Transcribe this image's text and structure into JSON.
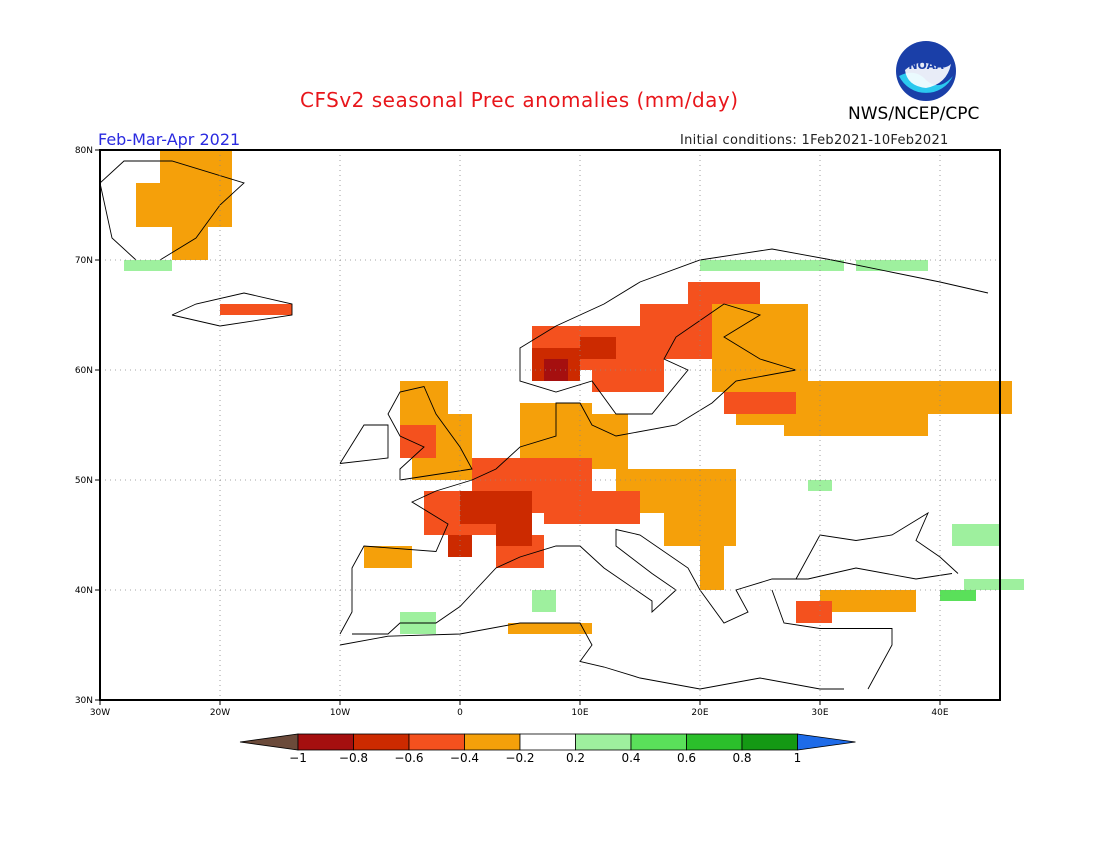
{
  "title": "CFSv2 seasonal Prec anomalies (mm/day)",
  "period": "Feb-Mar-Apr 2021",
  "initial_conditions": "Initial conditions: 1Feb2021-10Feb2021",
  "organization": "NWS/NCEP/CPC",
  "logo_text": "NOAA",
  "lat_labels": [
    "80N",
    "70N",
    "60N",
    "50N",
    "40N",
    "30N"
  ],
  "lon_labels": [
    "30W",
    "20W",
    "10W",
    "0",
    "10E",
    "20E",
    "30E",
    "40E"
  ],
  "colorbar": {
    "labels": [
      "−1",
      "−0.8",
      "−0.6",
      "−0.4",
      "−0.2",
      "0.2",
      "0.4",
      "0.6",
      "0.8",
      "1"
    ],
    "colors": [
      "#6b4a3a",
      "#a50f0f",
      "#cc2a00",
      "#f4511e",
      "#f5a00a",
      "#ffffff",
      "#9ef09e",
      "#5ae05a",
      "#2bbf2b",
      "#149914",
      "#1e6be8"
    ]
  },
  "map_data": {
    "lon_range": [
      -30,
      45
    ],
    "lat_range": [
      30,
      80
    ],
    "cell_deg": 1,
    "regions": [
      {
        "level": -0.3,
        "cells": [
          [
            -25,
            77,
            6,
            3
          ],
          [
            -27,
            73,
            8,
            4
          ],
          [
            -24,
            70,
            3,
            3
          ]
        ]
      },
      {
        "level": -0.5,
        "cells": [
          [
            -20,
            65,
            6,
            1
          ]
        ]
      },
      {
        "level": -0.3,
        "cells": [
          [
            -5,
            55,
            4,
            4
          ],
          [
            -4,
            50,
            5,
            5
          ],
          [
            -2,
            53,
            3,
            3
          ]
        ]
      },
      {
        "level": -0.5,
        "cells": [
          [
            -5,
            52,
            3,
            3
          ]
        ]
      },
      {
        "level": -0.3,
        "cells": [
          [
            5,
            51,
            6,
            6
          ],
          [
            11,
            51,
            3,
            5
          ],
          [
            13,
            47,
            10,
            4
          ],
          [
            17,
            44,
            6,
            4
          ],
          [
            20,
            40,
            2,
            4
          ]
        ]
      },
      {
        "level": -0.5,
        "cells": [
          [
            1,
            47,
            10,
            5
          ],
          [
            -3,
            45,
            6,
            4
          ],
          [
            7,
            46,
            8,
            3
          ],
          [
            3,
            42,
            4,
            3
          ]
        ]
      },
      {
        "level": -0.7,
        "cells": [
          [
            0,
            46,
            6,
            3
          ],
          [
            3,
            44,
            3,
            2
          ],
          [
            -1,
            43,
            2,
            2
          ]
        ]
      },
      {
        "level": -0.3,
        "cells": [
          [
            -8,
            42,
            4,
            2
          ],
          [
            4,
            36,
            7,
            1
          ]
        ]
      },
      {
        "level": -0.5,
        "cells": [
          [
            6,
            60,
            6,
            4
          ],
          [
            11,
            58,
            6,
            6
          ],
          [
            15,
            61,
            8,
            5
          ],
          [
            19,
            65,
            6,
            3
          ]
        ]
      },
      {
        "level": -0.7,
        "cells": [
          [
            6,
            59,
            4,
            3
          ],
          [
            10,
            61,
            3,
            2
          ]
        ]
      },
      {
        "level": -0.9,
        "cells": [
          [
            7,
            59,
            2,
            2
          ]
        ]
      },
      {
        "level": -0.3,
        "cells": [
          [
            21,
            58,
            8,
            8
          ],
          [
            27,
            54,
            12,
            5
          ],
          [
            36,
            56,
            10,
            3
          ],
          [
            23,
            55,
            8,
            3
          ],
          [
            30,
            38,
            8,
            2
          ]
        ]
      },
      {
        "level": -0.5,
        "cells": [
          [
            22,
            56,
            6,
            2
          ],
          [
            28,
            37,
            3,
            2
          ]
        ]
      },
      {
        "level": 0.3,
        "cells": [
          [
            20,
            69,
            12,
            1
          ],
          [
            33,
            69,
            6,
            1
          ],
          [
            -28,
            69,
            4,
            1
          ],
          [
            29,
            49,
            2,
            1
          ],
          [
            6,
            38,
            2,
            2
          ],
          [
            -5,
            36,
            3,
            2
          ],
          [
            42,
            40,
            5,
            1
          ],
          [
            41,
            44,
            4,
            2
          ]
        ]
      },
      {
        "level": 0.5,
        "cells": [
          [
            40,
            39,
            3,
            1
          ]
        ]
      }
    ]
  }
}
